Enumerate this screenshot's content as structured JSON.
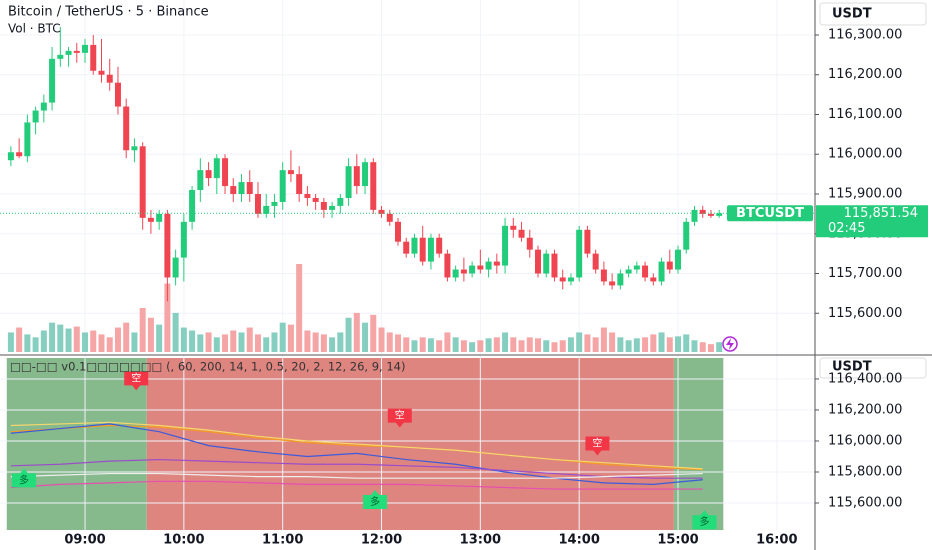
{
  "chart_data": [
    {
      "type": "candlestick",
      "title": "Bitcoin / TetherUS · 5 · Binance",
      "subtitle": "Vol · BTC",
      "axis_label": "USDT",
      "up_color": "#22cc7a",
      "down_color": "#ef4551",
      "volume_up_color": "#86cfc0",
      "volume_down_color": "#f5a5a5",
      "categories": [
        "08:15",
        "08:20",
        "08:25",
        "08:30",
        "08:35",
        "08:40",
        "08:45",
        "08:50",
        "08:55",
        "09:00",
        "09:05",
        "09:10",
        "09:15",
        "09:20",
        "09:25",
        "09:30",
        "09:35",
        "09:40",
        "09:45",
        "09:50",
        "09:55",
        "10:00",
        "10:05",
        "10:10",
        "10:15",
        "10:20",
        "10:25",
        "10:30",
        "10:35",
        "10:40",
        "10:45",
        "10:50",
        "10:55",
        "11:00",
        "11:05",
        "11:10",
        "11:15",
        "11:20",
        "11:25",
        "11:30",
        "11:35",
        "11:40",
        "11:45",
        "11:50",
        "11:55",
        "12:00",
        "12:05",
        "12:10",
        "12:15",
        "12:20",
        "12:25",
        "12:30",
        "12:35",
        "12:40",
        "12:45",
        "12:50",
        "12:55",
        "13:00",
        "13:05",
        "13:10",
        "13:15",
        "13:20",
        "13:25",
        "13:30",
        "13:35",
        "13:40",
        "13:45",
        "13:50",
        "13:55",
        "14:00",
        "14:05",
        "14:10",
        "14:15",
        "14:20",
        "14:25",
        "14:30",
        "14:35",
        "14:40",
        "14:45",
        "14:50",
        "14:55",
        "15:00",
        "15:05",
        "15:10",
        "15:15",
        "15:20",
        "15:25"
      ],
      "open": [
        115985,
        116005,
        115995,
        116080,
        116110,
        116130,
        116240,
        116250,
        116260,
        116255,
        116275,
        116210,
        116200,
        116180,
        116120,
        116010,
        116020,
        115840,
        115830,
        115850,
        115690,
        115740,
        115830,
        115910,
        115960,
        115940,
        115990,
        115920,
        115900,
        115930,
        115900,
        115850,
        115870,
        115880,
        115960,
        115950,
        115900,
        115890,
        115880,
        115860,
        115870,
        115890,
        115970,
        115920,
        115980,
        115860,
        115850,
        115830,
        115780,
        115750,
        115790,
        115730,
        115790,
        115750,
        115690,
        115710,
        115700,
        115720,
        115710,
        115730,
        115720,
        115820,
        115810,
        115790,
        115760,
        115700,
        115750,
        115690,
        115680,
        115690,
        115810,
        115750,
        115710,
        115680,
        115670,
        115700,
        115710,
        115720,
        115690,
        115680,
        115730,
        115710,
        115760,
        115830,
        115860,
        115850,
        115845
      ],
      "high": [
        116020,
        116040,
        116100,
        116120,
        116150,
        116270,
        116320,
        116270,
        116280,
        116290,
        116300,
        116290,
        116240,
        116220,
        116140,
        116040,
        116030,
        115860,
        115860,
        115860,
        115760,
        115850,
        115920,
        115990,
        115980,
        116000,
        116000,
        115940,
        115950,
        115960,
        115930,
        115900,
        115900,
        115980,
        116010,
        115970,
        115920,
        115900,
        115890,
        115880,
        115900,
        115990,
        116000,
        115990,
        115990,
        115870,
        115860,
        115840,
        115790,
        115800,
        115820,
        115800,
        115800,
        115760,
        115720,
        115740,
        115730,
        115760,
        115740,
        115750,
        115840,
        115840,
        115830,
        115810,
        115770,
        115760,
        115760,
        115710,
        115700,
        115820,
        115820,
        115760,
        115730,
        115700,
        115710,
        115720,
        115730,
        115730,
        115700,
        115740,
        115760,
        115770,
        115840,
        115870,
        115870,
        115860,
        115860
      ],
      "low": [
        115970,
        115990,
        115980,
        116050,
        116080,
        116110,
        116220,
        116220,
        116230,
        116230,
        116200,
        116180,
        116160,
        116100,
        115990,
        115980,
        115810,
        115800,
        115810,
        115630,
        115670,
        115680,
        115810,
        115880,
        115920,
        115900,
        115900,
        115880,
        115880,
        115880,
        115840,
        115840,
        115840,
        115860,
        115930,
        115880,
        115870,
        115860,
        115840,
        115840,
        115850,
        115870,
        115900,
        115900,
        115850,
        115840,
        115820,
        115770,
        115740,
        115740,
        115720,
        115710,
        115740,
        115680,
        115680,
        115680,
        115690,
        115700,
        115690,
        115700,
        115700,
        115790,
        115780,
        115740,
        115690,
        115690,
        115680,
        115660,
        115670,
        115680,
        115740,
        115700,
        115670,
        115660,
        115660,
        115690,
        115700,
        115680,
        115670,
        115670,
        115700,
        115700,
        115750,
        115820,
        115840,
        115840,
        115840
      ],
      "close": [
        116005,
        115995,
        116080,
        116110,
        116130,
        116240,
        116250,
        116260,
        116255,
        116275,
        116210,
        116200,
        116180,
        116120,
        116010,
        116020,
        115840,
        115830,
        115850,
        115690,
        115740,
        115830,
        115910,
        115960,
        115940,
        115990,
        115920,
        115900,
        115930,
        115900,
        115850,
        115870,
        115880,
        115960,
        115950,
        115900,
        115890,
        115880,
        115860,
        115870,
        115890,
        115970,
        115920,
        115980,
        115860,
        115850,
        115830,
        115780,
        115750,
        115790,
        115730,
        115790,
        115750,
        115690,
        115710,
        115700,
        115720,
        115710,
        115730,
        115720,
        115820,
        115810,
        115790,
        115760,
        115700,
        115750,
        115690,
        115680,
        115690,
        115810,
        115750,
        115710,
        115680,
        115670,
        115700,
        115710,
        115720,
        115690,
        115680,
        115730,
        115710,
        115760,
        115830,
        115860,
        115850,
        115845,
        115851.54
      ],
      "volume": [
        20,
        25,
        18,
        15,
        22,
        30,
        28,
        24,
        26,
        20,
        22,
        18,
        15,
        25,
        30,
        20,
        45,
        35,
        28,
        70,
        40,
        25,
        22,
        18,
        20,
        15,
        18,
        22,
        20,
        25,
        18,
        15,
        20,
        30,
        28,
        90,
        22,
        20,
        18,
        15,
        20,
        35,
        40,
        30,
        38,
        25,
        20,
        18,
        15,
        12,
        15,
        14,
        12,
        20,
        15,
        12,
        10,
        12,
        14,
        15,
        20,
        15,
        12,
        15,
        14,
        12,
        10,
        12,
        15,
        20,
        18,
        15,
        25,
        20,
        15,
        12,
        14,
        15,
        18,
        20,
        15,
        16,
        18,
        12,
        10,
        8,
        10
      ],
      "ylim": [
        115495,
        116388
      ],
      "yticks": [
        {
          "value": 116300,
          "label": "116,300.00"
        },
        {
          "value": 116200,
          "label": "116,200.00"
        },
        {
          "value": 116100,
          "label": "116,100.00"
        },
        {
          "value": 116000,
          "label": "116,000.00"
        },
        {
          "value": 115900,
          "label": "115,900.00"
        },
        {
          "value": 115800,
          "label": "115,800.00"
        },
        {
          "value": 115700,
          "label": "115,700.00"
        },
        {
          "value": 115600,
          "label": "115,600.00"
        }
      ],
      "last_price": {
        "symbol": "BTCUSDT",
        "value": 115851.54,
        "label": "115,851.54",
        "countdown": "02:45"
      },
      "xticks": [
        "09:00",
        "10:00",
        "11:00",
        "12:00",
        "13:00",
        "14:00",
        "15:00",
        "16:00"
      ]
    },
    {
      "type": "line",
      "title": "□□-□□ v0.1□□□□□□□ (, 60, 200, 14, 1, 0.5, 20, 2, 12, 26, 9, 14)",
      "axis_label": "USDT",
      "categories": [
        "08:15",
        "08:45",
        "09:15",
        "09:45",
        "10:15",
        "10:45",
        "11:15",
        "11:45",
        "12:15",
        "12:45",
        "13:15",
        "13:45",
        "14:15",
        "14:45",
        "15:15"
      ],
      "series": [
        {
          "color": "#f59a23",
          "values": [
            116060,
            116080,
            116100,
            116090,
            116060,
            116020,
            115990,
            115970,
            115960,
            115940,
            115910,
            115880,
            115850,
            115830,
            115815
          ]
        },
        {
          "color": "#f5d76e",
          "values": [
            116100,
            116110,
            116120,
            116100,
            116070,
            116030,
            116000,
            115980,
            115960,
            115940,
            115910,
            115880,
            115860,
            115840,
            115820
          ]
        },
        {
          "color": "#3b5bdb",
          "values": [
            116050,
            116080,
            116110,
            116060,
            115970,
            115930,
            115900,
            115920,
            115880,
            115850,
            115800,
            115760,
            115730,
            115720,
            115750
          ]
        },
        {
          "color": "#9b4dca",
          "values": [
            115840,
            115850,
            115870,
            115880,
            115870,
            115860,
            115850,
            115850,
            115840,
            115830,
            115810,
            115790,
            115770,
            115760,
            115760
          ]
        },
        {
          "color": "#e64fb0",
          "values": [
            115700,
            115720,
            115730,
            115740,
            115740,
            115730,
            115720,
            115720,
            115720,
            115710,
            115700,
            115690,
            115690,
            115690,
            115690
          ]
        },
        {
          "color": "#eeeeee",
          "values": [
            115770,
            115780,
            115790,
            115790,
            115780,
            115770,
            115770,
            115760,
            115760,
            115760,
            115760,
            115760,
            115770,
            115780,
            115790
          ]
        }
      ],
      "zones": [
        {
          "from": "08:15",
          "to": "09:40",
          "color": "#86b98c"
        },
        {
          "from": "09:40",
          "to": "15:00",
          "color": "#df8580"
        },
        {
          "from": "15:00",
          "to": "15:30",
          "color": "#86b98c"
        }
      ],
      "signals": [
        {
          "time": "08:15",
          "label": "多",
          "price": 115830
        },
        {
          "time": "09:25",
          "label": "空",
          "price": 116320
        },
        {
          "time": "11:50",
          "label": "多",
          "price": 115690
        },
        {
          "time": "12:05",
          "label": "空",
          "price": 116080
        },
        {
          "time": "14:05",
          "label": "空",
          "price": 115900
        },
        {
          "time": "15:10",
          "label": "多",
          "price": 115560
        }
      ],
      "ylim": [
        115426,
        116535
      ],
      "yticks": [
        {
          "value": 116400,
          "label": "116,400.00"
        },
        {
          "value": 116200,
          "label": "116,200.00"
        },
        {
          "value": 116000,
          "label": "116,000.00"
        },
        {
          "value": 115800,
          "label": "115,800.00"
        },
        {
          "value": 115600,
          "label": "115,600.00"
        }
      ]
    }
  ]
}
